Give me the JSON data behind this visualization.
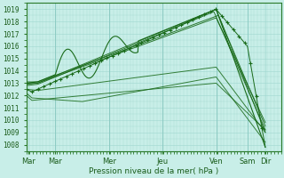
{
  "title": "",
  "xlabel": "Pression niveau de la mer( hPa )",
  "bg_color": "#c8eee8",
  "grid_color": "#a0d8d0",
  "line_color": "#1a6b1a",
  "ylim": [
    1007.5,
    1019.5
  ],
  "yticks": [
    1008,
    1009,
    1010,
    1011,
    1012,
    1013,
    1014,
    1015,
    1016,
    1017,
    1018,
    1019
  ],
  "xlim": [
    0,
    228
  ],
  "xtick_positions": [
    2,
    26,
    74,
    122,
    170,
    198,
    214
  ],
  "xtick_labels": [
    "Mar",
    "Mar",
    "Mer",
    "Jeu",
    "Ven",
    "Sam",
    "Dir"
  ],
  "vlines": [
    26,
    74,
    122,
    170,
    198
  ]
}
